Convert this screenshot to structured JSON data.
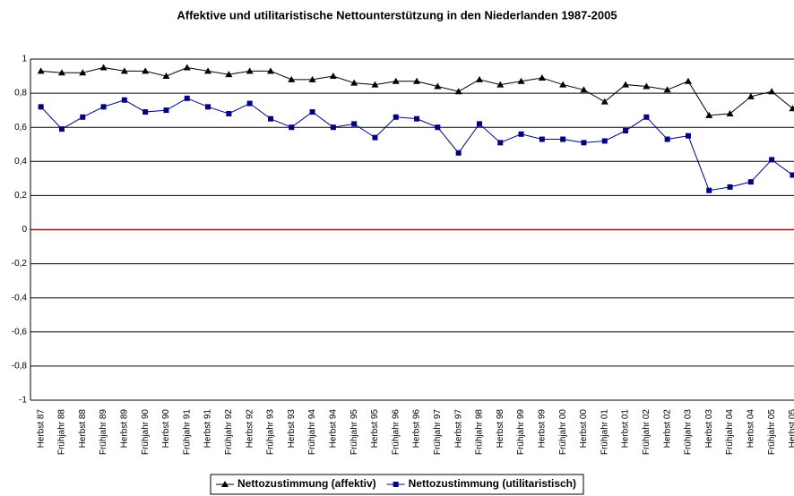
{
  "chart_data": {
    "type": "line",
    "title": "Affektive und utilitaristische Nettounterstützung in den Niederlanden 1987-2005",
    "categories": [
      "Herbst 87",
      "Frühjahr 88",
      "Herbst 88",
      "Frühjahr 89",
      "Herbst 89",
      "Frühjahr 90",
      "Herbst 90",
      "Frühjahr 91",
      "Herbst 91",
      "Frühjahr 92",
      "Herbst 92",
      "Frühjahr 93",
      "Herbst 93",
      "Frühjahr 94",
      "Herbst 94",
      "Frühjahr 95",
      "Herbst 95",
      "Frühjahr 96",
      "Herbst 96",
      "Frühjahr 97",
      "Herbst 97",
      "Frühjahr 98",
      "Herbst 98",
      "Frühjahr 99",
      "Herbst 99",
      "Frühjahr 00",
      "Herbst 00",
      "Frühjahr 01",
      "Herbst 01",
      "Frühjahr 02",
      "Herbst 02",
      "Frühjahr 03",
      "Herbst 03",
      "Frühjahr 04",
      "Herbst 04",
      "Frühjahr 05",
      "Herbst 05"
    ],
    "series": [
      {
        "name": "Nettozustimmung (affektiv)",
        "color": "#000000",
        "marker": "triangle",
        "values": [
          0.93,
          0.92,
          0.92,
          0.95,
          0.93,
          0.93,
          0.9,
          0.95,
          0.93,
          0.91,
          0.93,
          0.93,
          0.88,
          0.88,
          0.9,
          0.86,
          0.85,
          0.87,
          0.87,
          0.84,
          0.81,
          0.88,
          0.85,
          0.87,
          0.89,
          0.85,
          0.82,
          0.75,
          0.85,
          0.84,
          0.82,
          0.87,
          0.67,
          0.68,
          0.78,
          0.81,
          0.71
        ]
      },
      {
        "name": "Nettozustimmung (utilitaristisch)",
        "color": "#000080",
        "marker": "square",
        "values": [
          0.72,
          0.59,
          0.66,
          0.72,
          0.76,
          0.69,
          0.7,
          0.77,
          0.72,
          0.68,
          0.74,
          0.65,
          0.6,
          0.69,
          0.6,
          0.62,
          0.54,
          0.66,
          0.65,
          0.6,
          0.45,
          0.62,
          0.51,
          0.56,
          0.53,
          0.53,
          0.51,
          0.52,
          0.58,
          0.66,
          0.53,
          0.55,
          0.23,
          0.25,
          0.28,
          0.41,
          0.32
        ]
      }
    ],
    "ylim": [
      -1,
      1
    ],
    "yticks": [
      -1,
      {
        "value": -0.8,
        "label": "-0,8"
      },
      {
        "value": -0.6,
        "label": "-0,6"
      },
      {
        "value": -0.4,
        "label": "-0,4"
      },
      {
        "value": -0.2,
        "label": "-0,2"
      },
      0,
      {
        "value": 0.2,
        "label": "0,2"
      },
      {
        "value": 0.4,
        "label": "0,4"
      },
      {
        "value": 0.6,
        "label": "0,6"
      },
      {
        "value": 0.8,
        "label": "0,8"
      },
      1
    ],
    "grid": true,
    "zero_line_color": "#cc0000",
    "legend": "bottom"
  }
}
